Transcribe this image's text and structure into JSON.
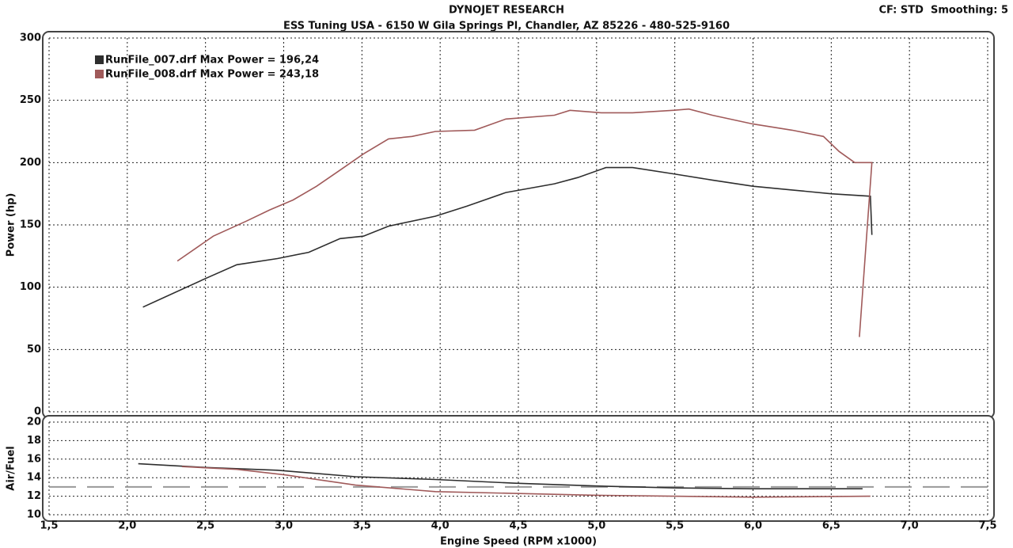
{
  "chart_data": [
    {
      "type": "line",
      "title": "DYNOJET RESEARCH",
      "subtitle": "ESS Tuning USA - 6150 W Gila Springs Pl, Chandler, AZ 85226 - 480-525-9160",
      "annotation": "CF: STD  Smoothing: 5",
      "y_label": "Power (hp)",
      "xlim": [
        1.5,
        7.5
      ],
      "xticks": [
        1.5,
        2.0,
        2.5,
        3.0,
        3.5,
        4.0,
        4.5,
        5.0,
        5.5,
        6.0,
        6.5,
        7.0,
        7.5
      ],
      "ylim": [
        0,
        300
      ],
      "yticks": [
        0,
        50,
        100,
        150,
        200,
        250,
        300
      ],
      "grid": true,
      "legend": "upper left",
      "series": [
        {
          "name": "RunFile_007.drf Max Power = 196,24",
          "color": "#2e2e2e",
          "x": [
            2.1,
            2.5,
            2.7,
            2.96,
            3.16,
            3.36,
            3.51,
            3.67,
            3.97,
            4.17,
            4.42,
            4.73,
            4.88,
            5.06,
            5.23,
            5.49,
            5.74,
            6.0,
            6.25,
            6.5,
            6.75,
            6.76
          ],
          "values": [
            84,
            107,
            118,
            123,
            128,
            139,
            141,
            149,
            157,
            165,
            176,
            183,
            188,
            196,
            196,
            191,
            186,
            181,
            178,
            175,
            173,
            142
          ]
        },
        {
          "name": "RunFile_008.drf Max Power = 243,18",
          "color": "#a05a5a",
          "x": [
            2.32,
            2.55,
            2.76,
            2.91,
            3.06,
            3.21,
            3.36,
            3.51,
            3.67,
            3.82,
            3.97,
            4.22,
            4.42,
            4.73,
            4.83,
            5.03,
            5.23,
            5.49,
            5.59,
            5.74,
            6.0,
            6.25,
            6.45,
            6.55,
            6.65,
            6.76,
            6.68
          ],
          "values": [
            121,
            141,
            153,
            162,
            170,
            181,
            194,
            207,
            219,
            221,
            225,
            226,
            235,
            238,
            242,
            240,
            240,
            242,
            243,
            238,
            231,
            226,
            221,
            209,
            200,
            200,
            60
          ]
        }
      ]
    },
    {
      "type": "line",
      "y_label": "Air/Fuel",
      "x_label": "Engine Speed (RPM x1000)",
      "xlim": [
        1.5,
        7.5
      ],
      "xticks": [
        {
          "value": 1.5,
          "label": "1,5"
        },
        {
          "value": 2.0,
          "label": "2,0"
        },
        {
          "value": 2.5,
          "label": "2,5"
        },
        {
          "value": 3.0,
          "label": "3,0"
        },
        {
          "value": 3.5,
          "label": "3,5"
        },
        {
          "value": 4.0,
          "label": "4,0"
        },
        {
          "value": 4.5,
          "label": "4,5"
        },
        {
          "value": 5.0,
          "label": "5,0"
        },
        {
          "value": 5.5,
          "label": "5,5"
        },
        {
          "value": 6.0,
          "label": "6,0"
        },
        {
          "value": 6.5,
          "label": "6,5"
        },
        {
          "value": 7.0,
          "label": "7,0"
        },
        {
          "value": 7.5,
          "label": "7,5"
        }
      ],
      "ylim": [
        10,
        20
      ],
      "yticks": [
        10,
        12,
        14,
        16,
        18,
        20
      ],
      "grid": true,
      "reference_line": 13,
      "series": [
        {
          "color": "#2e2e2e",
          "x": [
            2.07,
            2.5,
            2.96,
            3.46,
            3.97,
            4.48,
            5.0,
            5.49,
            6.0,
            6.7
          ],
          "values": [
            15.5,
            15.1,
            14.8,
            14.1,
            13.8,
            13.4,
            13.1,
            12.9,
            12.8,
            12.8
          ]
        },
        {
          "color": "#a05a5a",
          "x": [
            2.35,
            2.7,
            3.01,
            3.46,
            3.97,
            4.48,
            5.0,
            5.49,
            6.0,
            6.75
          ],
          "values": [
            15.2,
            14.9,
            14.3,
            13.2,
            12.5,
            12.3,
            12.1,
            12.0,
            11.9,
            12.0
          ]
        }
      ]
    }
  ]
}
